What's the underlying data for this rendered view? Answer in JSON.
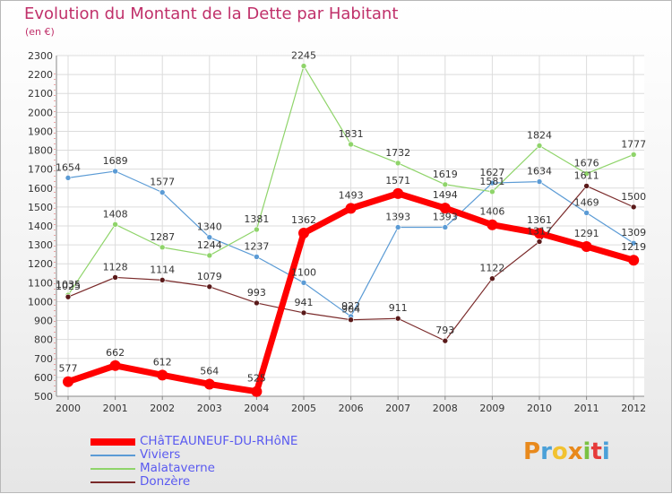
{
  "title": "Evolution du Montant de la Dette par Habitant",
  "subtitle": "(en €)",
  "logo": "Proxiti",
  "chart_data": {
    "type": "line",
    "title": "Evolution du Montant de la Dette par Habitant",
    "ylabel": "(en €)",
    "xlabel": "",
    "ylim": [
      500,
      2300
    ],
    "y_ticks": [
      500,
      600,
      700,
      800,
      900,
      1000,
      1100,
      1200,
      1300,
      1400,
      1500,
      1600,
      1700,
      1800,
      1900,
      2000,
      2100,
      2200,
      2300
    ],
    "categories": [
      "2000",
      "2001",
      "2002",
      "2003",
      "2004",
      "2005",
      "2006",
      "2007",
      "2008",
      "2009",
      "2010",
      "2011",
      "2012"
    ],
    "grid": true,
    "legend_position": "bottom-left",
    "series": [
      {
        "name": "CHâTEAUNEUF-DU-RHôNE",
        "color": "#ff0000",
        "emphasis": true,
        "values": [
          577,
          662,
          612,
          564,
          525,
          1362,
          1493,
          1571,
          1494,
          1406,
          1361,
          1291,
          1219
        ]
      },
      {
        "name": "Viviers",
        "color": "#5b9bd5",
        "emphasis": false,
        "values": [
          1654,
          1689,
          1577,
          1340,
          1237,
          1100,
          922,
          1393,
          1393,
          1627,
          1634,
          1469,
          1309
        ]
      },
      {
        "name": "Malataverne",
        "color": "#8fd46a",
        "emphasis": false,
        "values": [
          1035,
          1408,
          1287,
          1244,
          1381,
          2245,
          1831,
          1732,
          1619,
          1581,
          1824,
          1676,
          1777
        ]
      },
      {
        "name": "Donzère",
        "color": "#7a2a2a",
        "emphasis": false,
        "values": [
          1025,
          1128,
          1114,
          1079,
          993,
          941,
          904,
          911,
          793,
          1122,
          1317,
          1611,
          1500
        ]
      }
    ]
  },
  "logo_colors": [
    "#e8891c",
    "#4aa0d8",
    "#f2c230",
    "#e8891c",
    "#7ac142",
    "#e63a3a",
    "#4aa0d8"
  ]
}
